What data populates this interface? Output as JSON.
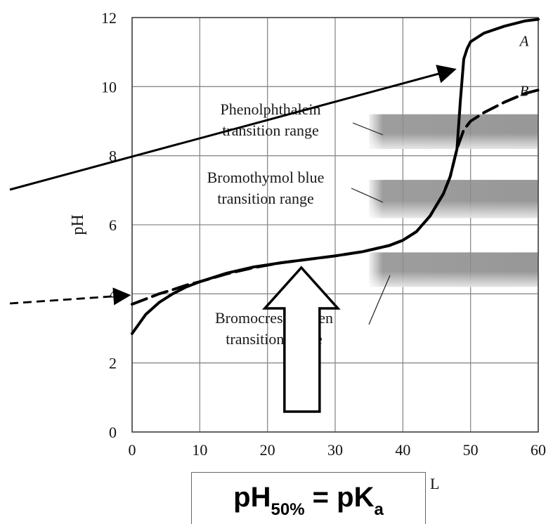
{
  "chart_data": {
    "type": "line",
    "title": "",
    "xlabel": "",
    "ylabel": "pH",
    "xlim": [
      0,
      60
    ],
    "ylim": [
      0,
      12
    ],
    "x_ticks": [
      "0",
      "10",
      "20",
      "30",
      "40",
      "50",
      "60"
    ],
    "y_ticks": [
      "0",
      "2",
      "4",
      "6",
      "8",
      "10",
      "12"
    ],
    "grid": true,
    "series": [
      {
        "name": "A",
        "style": "solid",
        "color": "#000000",
        "x": [
          0,
          2,
          4,
          6,
          8,
          10,
          14,
          18,
          22,
          26,
          30,
          34,
          38,
          40,
          42,
          44,
          46,
          47,
          48,
          48.5,
          49,
          49.5,
          50,
          52,
          55,
          58,
          60
        ],
        "y": [
          2.85,
          3.4,
          3.75,
          4.0,
          4.2,
          4.35,
          4.6,
          4.78,
          4.9,
          5.0,
          5.1,
          5.22,
          5.4,
          5.55,
          5.8,
          6.25,
          6.9,
          7.4,
          8.2,
          9.6,
          10.8,
          11.1,
          11.3,
          11.55,
          11.75,
          11.9,
          11.95
        ]
      },
      {
        "name": "B",
        "style": "dashed",
        "color": "#000000",
        "x": [
          0,
          2,
          4,
          6,
          8,
          10,
          14,
          18,
          22,
          26,
          30,
          34,
          38,
          40,
          42,
          44,
          46,
          47,
          48,
          49,
          50,
          52,
          55,
          58,
          60
        ],
        "y": [
          3.7,
          3.85,
          4.0,
          4.12,
          4.25,
          4.35,
          4.58,
          4.76,
          4.9,
          5.0,
          5.1,
          5.22,
          5.4,
          5.55,
          5.8,
          6.25,
          6.9,
          7.4,
          8.2,
          8.75,
          9.0,
          9.25,
          9.55,
          9.8,
          9.9
        ]
      }
    ],
    "indicator_bands": [
      {
        "label_lines": [
          "Phenolphthalein",
          "transition range"
        ],
        "x_start": 35,
        "x_end": 60,
        "y_low": 8.2,
        "y_high": 9.2
      },
      {
        "label_lines": [
          "Bromothymol blue",
          "transition range"
        ],
        "x_start": 35,
        "x_end": 60,
        "y_low": 6.2,
        "y_high": 7.3
      },
      {
        "label_lines": [
          "Bromocresol green",
          "transition range"
        ],
        "x_start": 35,
        "x_end": 60,
        "y_low": 4.2,
        "y_high": 5.2
      }
    ],
    "annotations": {
      "solid_arrow_tip": {
        "x": 48.5,
        "y": 10.6
      },
      "dashed_arrow_tip": {
        "x": 0.2,
        "y": 4.0
      },
      "block_arrow_tip": {
        "x": 25,
        "y": 4.8
      },
      "formula": {
        "main": "pH",
        "sub": "50%",
        "rest": " = pK",
        "sub2": "a"
      },
      "unit_fragment": "L"
    }
  }
}
